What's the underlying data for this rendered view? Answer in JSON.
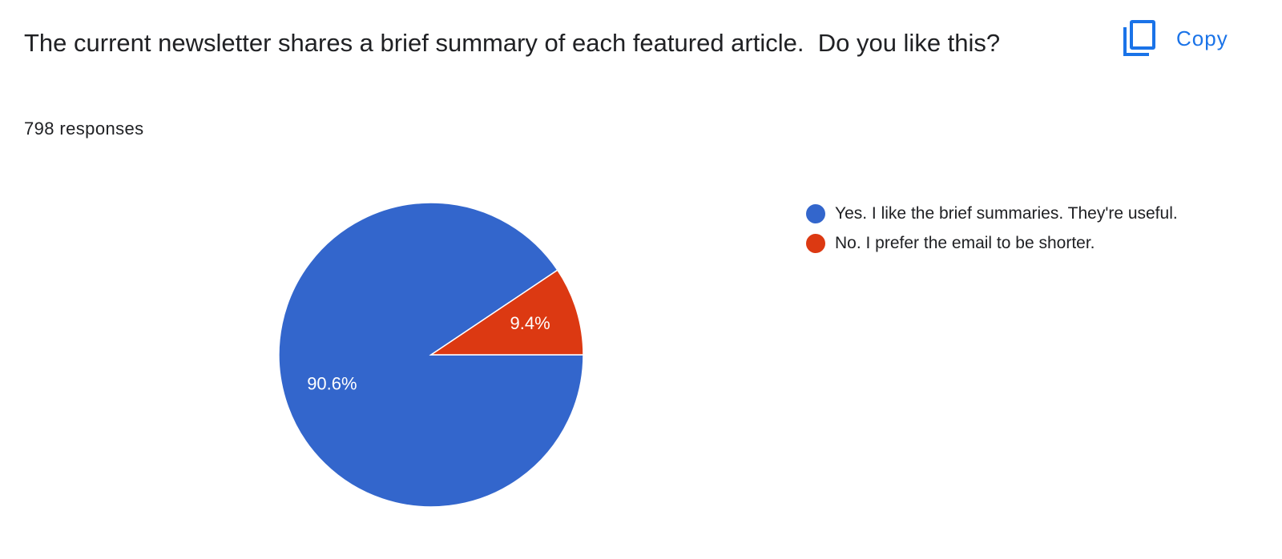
{
  "copy_button": "Copy",
  "chart_data": {
    "type": "pie",
    "title": "The current newsletter shares a brief summary of each featured article.  Do you like this?",
    "subtitle": "798 responses",
    "categories": [
      "Yes. I like the brief summaries. They're useful.",
      "No. I prefer the email to be shorter."
    ],
    "values": [
      90.6,
      9.4
    ],
    "value_labels": [
      "90.6%",
      "9.4%"
    ],
    "colors": [
      "#3366cc",
      "#dc3912"
    ],
    "legend": "right"
  }
}
